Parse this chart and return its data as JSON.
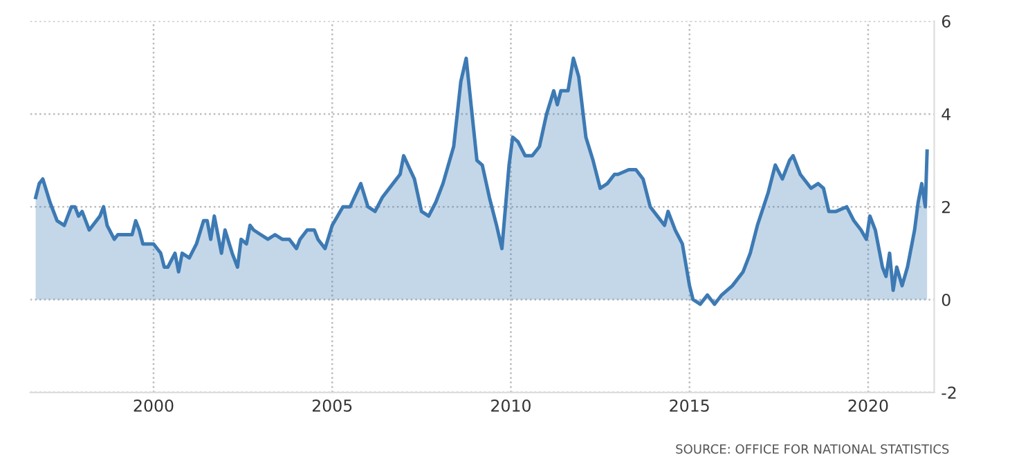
{
  "chart_data": {
    "type": "area",
    "x": [
      1996.7,
      1996.8,
      1996.9,
      1997.1,
      1997.3,
      1997.5,
      1997.7,
      1997.8,
      1997.9,
      1998.0,
      1998.2,
      1998.5,
      1998.6,
      1998.7,
      1998.9,
      1999.0,
      1999.2,
      1999.4,
      1999.5,
      1999.6,
      1999.7,
      2000.0,
      2000.2,
      2000.3,
      2000.4,
      2000.6,
      2000.7,
      2000.8,
      2001.0,
      2001.2,
      2001.4,
      2001.5,
      2001.6,
      2001.7,
      2001.9,
      2002.0,
      2002.2,
      2002.35,
      2002.45,
      2002.6,
      2002.7,
      2002.8,
      2003.0,
      2003.2,
      2003.4,
      2003.6,
      2003.8,
      2004.0,
      2004.1,
      2004.3,
      2004.5,
      2004.6,
      2004.8,
      2005.0,
      2005.3,
      2005.5,
      2005.8,
      2006.0,
      2006.2,
      2006.4,
      2006.7,
      2006.9,
      2007.0,
      2007.3,
      2007.5,
      2007.7,
      2007.9,
      2008.1,
      2008.4,
      2008.6,
      2008.75,
      2008.9,
      2009.05,
      2009.2,
      2009.4,
      2009.6,
      2009.75,
      2009.95,
      2010.05,
      2010.2,
      2010.4,
      2010.6,
      2010.8,
      2011.0,
      2011.2,
      2011.3,
      2011.4,
      2011.6,
      2011.75,
      2011.9,
      2012.1,
      2012.3,
      2012.5,
      2012.7,
      2012.9,
      2013.0,
      2013.3,
      2013.5,
      2013.7,
      2013.9,
      2014.1,
      2014.3,
      2014.4,
      2014.6,
      2014.8,
      2015.0,
      2015.1,
      2015.3,
      2015.5,
      2015.7,
      2015.9,
      2016.2,
      2016.5,
      2016.7,
      2016.9,
      2017.2,
      2017.4,
      2017.6,
      2017.8,
      2017.9,
      2018.1,
      2018.4,
      2018.6,
      2018.75,
      2018.9,
      2019.1,
      2019.4,
      2019.6,
      2019.8,
      2019.95,
      2020.05,
      2020.2,
      2020.4,
      2020.5,
      2020.6,
      2020.7,
      2020.8,
      2020.95,
      2021.1,
      2021.3,
      2021.4,
      2021.5,
      2021.6,
      2021.65
    ],
    "series": [
      {
        "color": "#3d7ab4",
        "values": [
          2.2,
          2.5,
          2.6,
          2.1,
          1.7,
          1.6,
          2.0,
          2.0,
          1.8,
          1.9,
          1.5,
          1.8,
          2.0,
          1.6,
          1.3,
          1.4,
          1.4,
          1.4,
          1.7,
          1.5,
          1.2,
          1.2,
          1.0,
          0.7,
          0.7,
          1.0,
          0.6,
          1.0,
          0.9,
          1.2,
          1.7,
          1.7,
          1.3,
          1.8,
          1.0,
          1.5,
          1.0,
          0.7,
          1.3,
          1.2,
          1.6,
          1.5,
          1.4,
          1.3,
          1.4,
          1.3,
          1.3,
          1.1,
          1.3,
          1.5,
          1.5,
          1.3,
          1.1,
          1.6,
          2.0,
          2.0,
          2.5,
          2.0,
          1.9,
          2.2,
          2.5,
          2.7,
          3.1,
          2.6,
          1.9,
          1.8,
          2.1,
          2.5,
          3.3,
          4.7,
          5.2,
          4.1,
          3.0,
          2.9,
          2.2,
          1.6,
          1.1,
          2.9,
          3.5,
          3.4,
          3.1,
          3.1,
          3.3,
          4.0,
          4.5,
          4.2,
          4.5,
          4.5,
          5.2,
          4.8,
          3.5,
          3.0,
          2.4,
          2.5,
          2.7,
          2.7,
          2.8,
          2.8,
          2.6,
          2.0,
          1.8,
          1.6,
          1.9,
          1.5,
          1.2,
          0.3,
          0.0,
          -0.1,
          0.1,
          -0.1,
          0.1,
          0.3,
          0.6,
          1.0,
          1.6,
          2.3,
          2.9,
          2.6,
          3.0,
          3.1,
          2.7,
          2.4,
          2.5,
          2.4,
          1.9,
          1.9,
          2.0,
          1.7,
          1.5,
          1.3,
          1.8,
          1.5,
          0.7,
          0.5,
          1.0,
          0.2,
          0.7,
          0.3,
          0.7,
          1.5,
          2.1,
          2.5,
          2.0,
          3.2
        ]
      }
    ],
    "xlim": [
      1996.55,
      2021.85
    ],
    "xticks": [
      2000,
      2005,
      2010,
      2015,
      2020
    ],
    "ylim": [
      -2,
      6
    ],
    "yticks": [
      -2,
      0,
      2,
      4,
      6
    ],
    "grid": true,
    "annotations": [
      "SOURCE: OFFICE FOR NATIONAL STATISTICS"
    ]
  }
}
